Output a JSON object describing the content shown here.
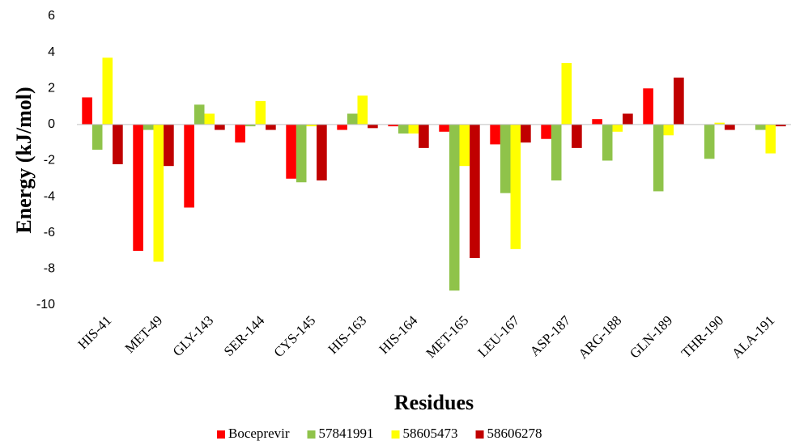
{
  "chart_data": {
    "type": "bar",
    "y_label": "Energy (kJ/mol)",
    "x_label": "Residues",
    "categories": [
      "HIS-41",
      "MET-49",
      "GLY-143",
      "SER-144",
      "CYS-145",
      "HIS-163",
      "HIS-164",
      "MET-165",
      "LEU-167",
      "ASP-187",
      "ARG-188",
      "GLN-189",
      "THR-190",
      "ALA-191"
    ],
    "series": [
      {
        "name": "Boceprevir",
        "color": "#ff0000",
        "values": [
          1.5,
          -7.0,
          -4.6,
          -1.0,
          -3.0,
          -0.3,
          -0.1,
          -0.4,
          -1.1,
          -0.8,
          0.3,
          2.0,
          0,
          0
        ]
      },
      {
        "name": "57841991",
        "color": "#8fc34a",
        "values": [
          -1.4,
          -0.3,
          1.1,
          -0.1,
          -3.2,
          0.6,
          -0.5,
          -9.2,
          -3.8,
          -3.1,
          -2.0,
          -3.7,
          -1.9,
          -0.3
        ]
      },
      {
        "name": "58605473",
        "color": "#ffff00",
        "values": [
          3.7,
          -7.6,
          0.6,
          1.3,
          -0.1,
          1.6,
          -0.5,
          -2.3,
          -6.9,
          3.4,
          -0.4,
          -0.6,
          0.1,
          -1.6
        ]
      },
      {
        "name": "58606278",
        "color": "#c00000",
        "values": [
          -2.2,
          -2.3,
          -0.3,
          -0.3,
          -3.1,
          -0.2,
          -1.3,
          -7.4,
          -1.0,
          -1.3,
          0.6,
          2.6,
          -0.3,
          -0.1
        ]
      }
    ],
    "ylim": [
      -10,
      6
    ],
    "yticks": [
      -10,
      -8,
      -6,
      -4,
      -2,
      0,
      2,
      4,
      6
    ],
    "legend": "bottom"
  }
}
